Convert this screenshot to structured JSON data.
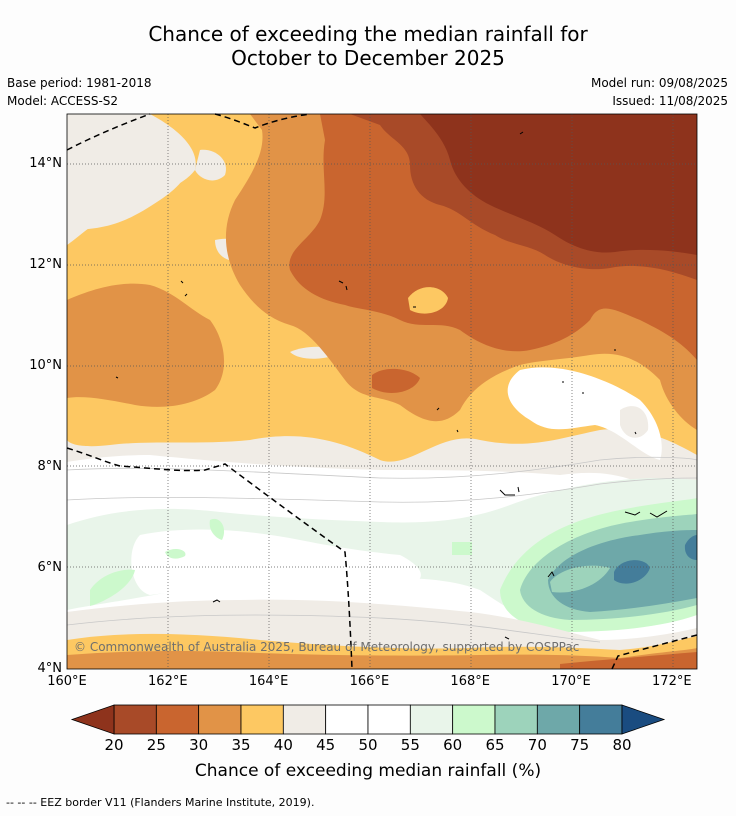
{
  "title": {
    "line1": "Chance of exceeding the median rainfall for",
    "line2": "October to December 2025"
  },
  "meta_left": {
    "base_period": "Base period: 1981-2018",
    "model": "Model: ACCESS-S2"
  },
  "meta_right": {
    "model_run": "Model run: 09/08/2025",
    "issued": "Issued: 11/08/2025"
  },
  "map": {
    "lon_range": [
      160,
      172.5
    ],
    "lat_range": [
      4,
      15
    ],
    "x_ticks": [
      "160°E",
      "162°E",
      "164°E",
      "166°E",
      "168°E",
      "170°E",
      "172°E"
    ],
    "y_ticks": [
      "4°N",
      "6°N",
      "8°N",
      "10°N",
      "12°N",
      "14°N"
    ],
    "grid": "dotted",
    "copyright": "© Commonwealth of Australia 2025, Bureau of Meteorology, supported by COSPPac"
  },
  "colorbar": {
    "ticks": [
      "20",
      "25",
      "30",
      "35",
      "40",
      "45",
      "50",
      "55",
      "60",
      "65",
      "70",
      "75",
      "80"
    ],
    "colors": [
      "#a84a28",
      "#c9652f",
      "#e19347",
      "#fdc862",
      "#f0ece6",
      "#ffffff",
      "#ffffff",
      "#e9f5ea",
      "#ccf9cc",
      "#9dd3bb",
      "#6ea8a9",
      "#447d9a"
    ],
    "low_extension_color": "#8e331c",
    "high_extension_color": "#1a4c80",
    "title": "Chance of exceeding median rainfall (%)"
  },
  "footnote": "--  --  -- EEZ border V11 (Flanders Marine Institute, 2019)."
}
